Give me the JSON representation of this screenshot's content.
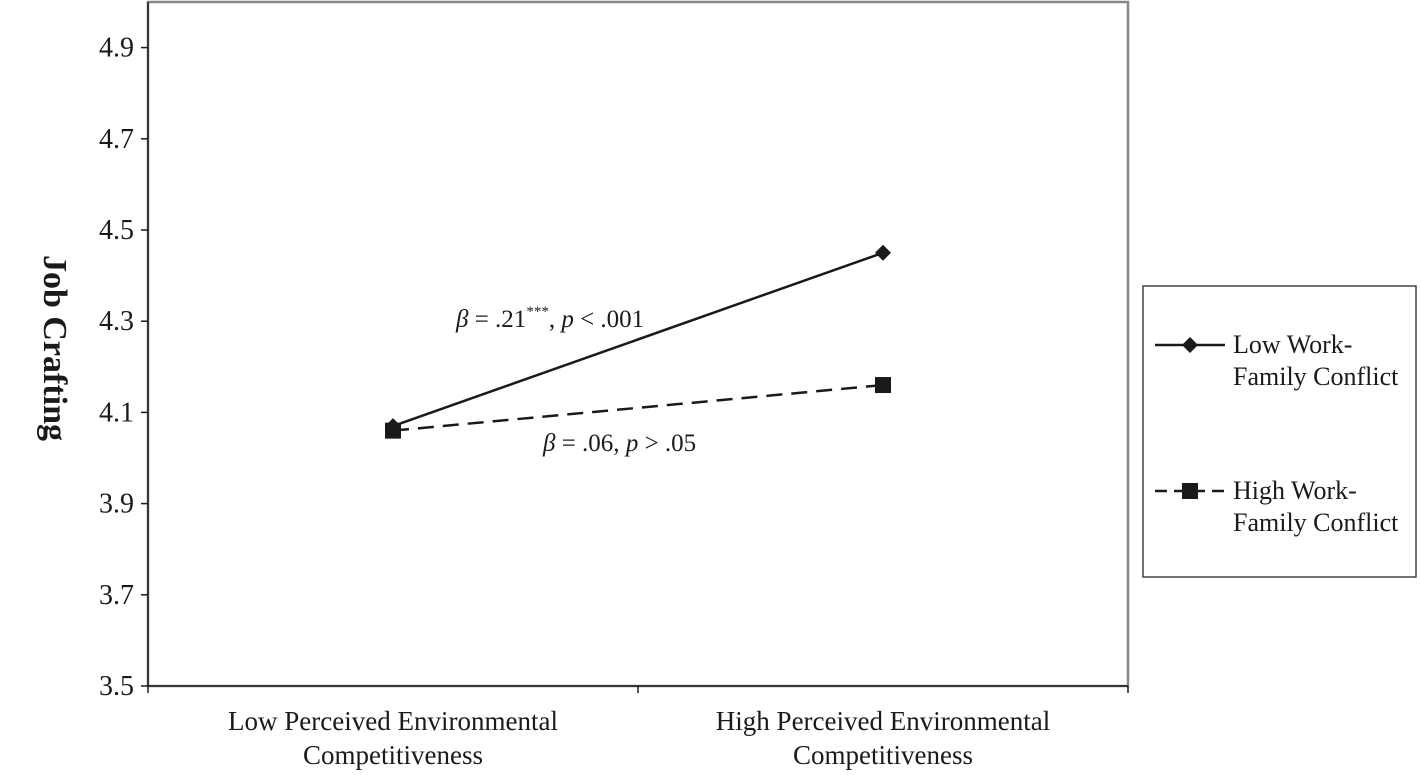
{
  "chart_data": {
    "type": "line",
    "ylabel": "Job Crafting",
    "xlabel": "",
    "ylim": [
      3.5,
      5.0
    ],
    "yticks": [
      "3.5",
      "3.7",
      "3.9",
      "4.1",
      "4.3",
      "4.5",
      "4.7",
      "4.9"
    ],
    "categories": [
      [
        "Low Perceived Environmental",
        "Competitiveness"
      ],
      [
        "High Perceived Environmental",
        "Competitiveness"
      ]
    ],
    "series": [
      {
        "name": [
          "Low Work-",
          "Family Conflict"
        ],
        "values": [
          4.07,
          4.45
        ],
        "marker": "diamond",
        "dash": "solid",
        "color": "#1a1a1a"
      },
      {
        "name": [
          "High Work-",
          "Family Conflict"
        ],
        "values": [
          4.06,
          4.16
        ],
        "marker": "square",
        "dash": "dashed",
        "color": "#1a1a1a"
      }
    ],
    "annotations": [
      {
        "beta_symbol": "β",
        "text1": " = .21",
        "sup": "***",
        "text2": ", ",
        "p_symbol": "p",
        "text3": " < .001"
      },
      {
        "beta_symbol": "β",
        "text1": " = .06, ",
        "p_symbol": "p",
        "text3": " > .05"
      }
    ],
    "grid": false,
    "legend_position": "right"
  }
}
